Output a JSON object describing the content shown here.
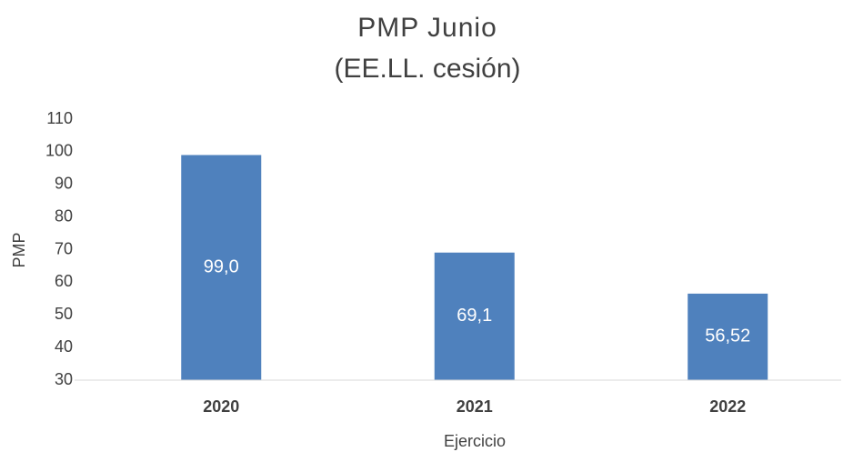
{
  "chart_data": {
    "type": "bar",
    "title": "PMP Junio",
    "subtitle": "(EE.LL. cesión)",
    "x_label": "Ejercicio",
    "y_label": "PMP",
    "categories": [
      "2020",
      "2021",
      "2022"
    ],
    "values": [
      99.0,
      69.1,
      56.52
    ],
    "value_labels": [
      "99,0",
      "69,1",
      "56,52"
    ],
    "color": "#4f81bd",
    "ylim": [
      30,
      110
    ],
    "yticks": [
      30,
      40,
      50,
      60,
      70,
      80,
      90,
      100,
      110
    ],
    "grid": false
  }
}
